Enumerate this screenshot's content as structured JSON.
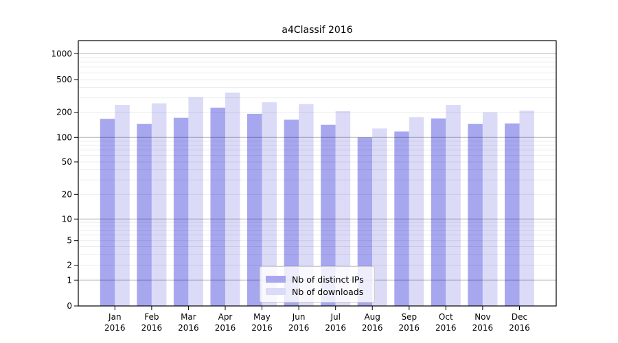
{
  "title": "a4Classif 2016",
  "chart_data": {
    "type": "bar",
    "title": "a4Classif 2016",
    "categories": [
      "Jan 2016",
      "Feb 2016",
      "Mar 2016",
      "Apr 2016",
      "May 2016",
      "Jun 2016",
      "Jul 2016",
      "Aug 2016",
      "Sep 2016",
      "Oct 2016",
      "Nov 2016",
      "Dec 2016"
    ],
    "series": [
      {
        "name": "Nb of distinct IPs",
        "color": "#a7a7f0",
        "values": [
          167,
          145,
          172,
          228,
          192,
          163,
          142,
          100,
          118,
          169,
          145,
          147
        ]
      },
      {
        "name": "Nb of downloads",
        "color": "#dbdbf8",
        "values": [
          246,
          257,
          305,
          348,
          265,
          252,
          207,
          128,
          175,
          246,
          200,
          209
        ]
      }
    ],
    "xlabel": "",
    "ylabel": "",
    "yscale": "symlog-like",
    "y_ticks": [
      0,
      1,
      2,
      5,
      10,
      20,
      50,
      100,
      200,
      500,
      1000
    ],
    "ylim": [
      0,
      1400
    ],
    "grid": "both",
    "legend_position": "lower-center"
  }
}
